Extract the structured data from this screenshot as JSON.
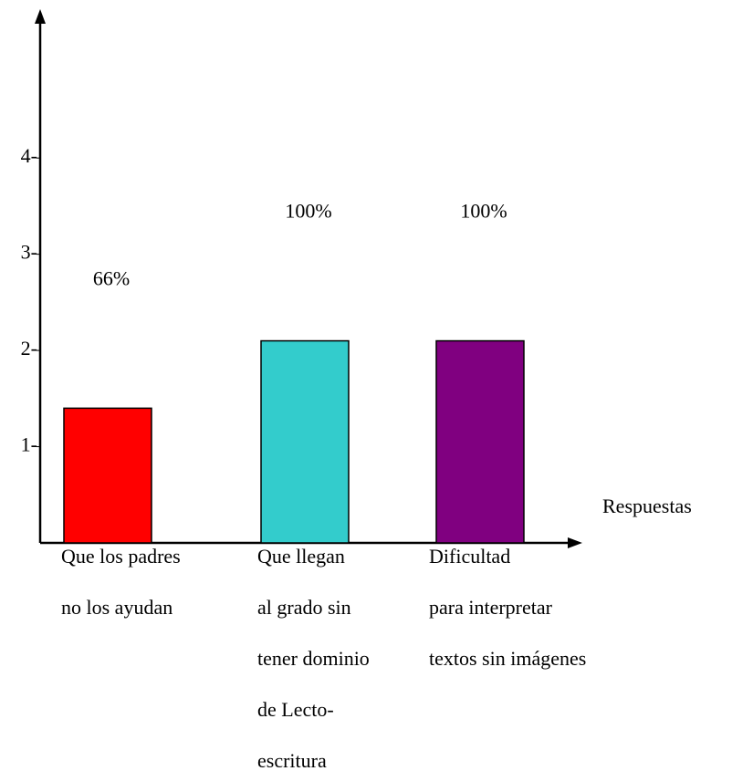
{
  "chart_data": {
    "type": "bar",
    "x_label": "Respuestas",
    "categories": [
      [
        "Que los padres",
        "no los ayudan"
      ],
      [
        "Que llegan",
        "al grado sin",
        "tener dominio",
        "de Lecto-",
        "escritura"
      ],
      [
        "Dificultad",
        "para interpretar",
        "textos sin imágenes"
      ]
    ],
    "values": [
      1.4,
      2.1,
      2.1
    ],
    "annotations": [
      "66%",
      "100%",
      "100%"
    ],
    "colors": [
      "#ff0000",
      "#33cccc",
      "#800080"
    ],
    "ylim": [
      0,
      5.5
    ],
    "yticks": [
      {
        "value": 1,
        "label": "1-"
      },
      {
        "value": 2,
        "label": "2-"
      },
      {
        "value": 3,
        "label": "3-"
      },
      {
        "value": 4,
        "label": "4-"
      }
    ]
  }
}
